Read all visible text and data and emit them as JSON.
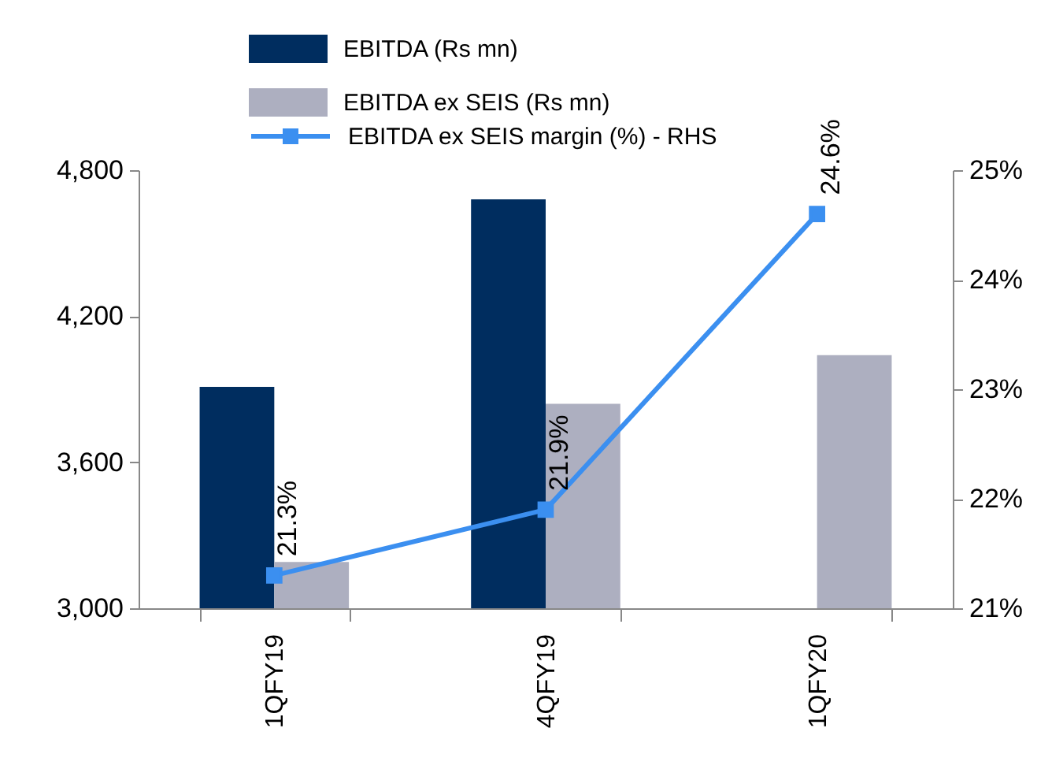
{
  "chart_data": {
    "type": "bar",
    "categories": [
      "1QFY19",
      "4QFY19",
      "1QFY20"
    ],
    "series": [
      {
        "name": "EBITDA (Rs mn)",
        "color": "#002d5f",
        "values": [
          3910,
          4680,
          null
        ]
      },
      {
        "name": "EBITDA ex SEIS (Rs mn)",
        "color": "#adafc0",
        "values": [
          3190,
          3840,
          4040
        ]
      },
      {
        "name": "EBITDA ex SEIS margin (%) - RHS",
        "type": "line",
        "axis": "y2",
        "color": "#3b8ff0",
        "values": [
          21.3,
          21.9,
          24.6
        ],
        "value_labels": [
          "21.3%",
          "21.9%",
          "24.6%"
        ]
      }
    ],
    "ylim": [
      3000,
      4800
    ],
    "yticks": [
      {
        "value": 3000,
        "label": "3,000"
      },
      {
        "value": 3600,
        "label": "3,600"
      },
      {
        "value": 4200,
        "label": "4,200"
      },
      {
        "value": 4800,
        "label": "4,800"
      }
    ],
    "y2lim": [
      21,
      25
    ],
    "y2ticks": [
      {
        "value": 21,
        "label": "21%"
      },
      {
        "value": 22,
        "label": "22%"
      },
      {
        "value": 23,
        "label": "23%"
      },
      {
        "value": 24,
        "label": "24%"
      },
      {
        "value": 25,
        "label": "25%"
      }
    ],
    "marker": "square",
    "legend": "top",
    "grid": false
  }
}
